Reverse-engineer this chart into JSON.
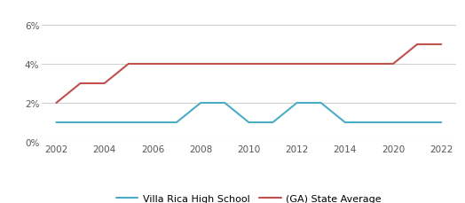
{
  "xtick_labels": [
    "2002",
    "2004",
    "2006",
    "2008",
    "2010",
    "2012",
    "2014",
    "2020",
    "2022"
  ],
  "xtick_positions": [
    0,
    1,
    2,
    3,
    4,
    5,
    6,
    7,
    8
  ],
  "school_x": [
    0,
    1,
    2,
    2.5,
    3,
    3.5,
    4,
    4.5,
    5,
    5.5,
    6,
    7,
    7.5,
    8
  ],
  "school_values": [
    0.01,
    0.01,
    0.01,
    0.01,
    0.02,
    0.02,
    0.01,
    0.01,
    0.02,
    0.02,
    0.01,
    0.01,
    0.01,
    0.01
  ],
  "state_x": [
    0,
    0.5,
    1,
    1.5,
    2,
    2.5,
    3,
    4,
    5,
    6,
    7,
    7.5,
    8
  ],
  "state_values": [
    0.02,
    0.03,
    0.03,
    0.04,
    0.04,
    0.04,
    0.04,
    0.04,
    0.04,
    0.04,
    0.04,
    0.05,
    0.05
  ],
  "school_color": "#4bacc6",
  "state_color": "#c0504d",
  "school_label": "Villa Rica High School",
  "state_label": "(GA) State Average",
  "ylim": [
    0,
    0.07
  ],
  "yticks": [
    0.0,
    0.02,
    0.04,
    0.06
  ],
  "ytick_labels": [
    "0%",
    "2%",
    "4%",
    "6%"
  ],
  "xlim": [
    -0.3,
    8.3
  ],
  "bg_color": "#ffffff",
  "grid_color": "#d0d0d0",
  "line_width": 1.5
}
